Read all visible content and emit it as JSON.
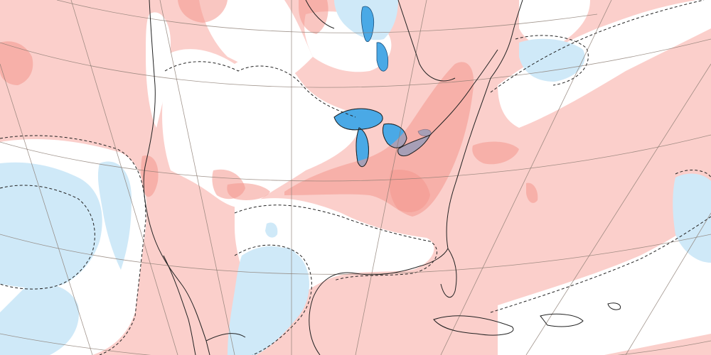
{
  "map": {
    "type": "anomaly-map",
    "region": "North America",
    "projection": "polar-stereographic",
    "grid": true,
    "coastlines": true,
    "colors": {
      "background": "#ffffff",
      "warm_anomaly": "#fbcfcb",
      "strong_warm_anomaly": "#f4988e",
      "cold_anomaly": "#cfe9f8",
      "strong_cold_anomaly": "#4aa9e6",
      "contour": "#222222",
      "graticule": "#8a7a70"
    }
  }
}
